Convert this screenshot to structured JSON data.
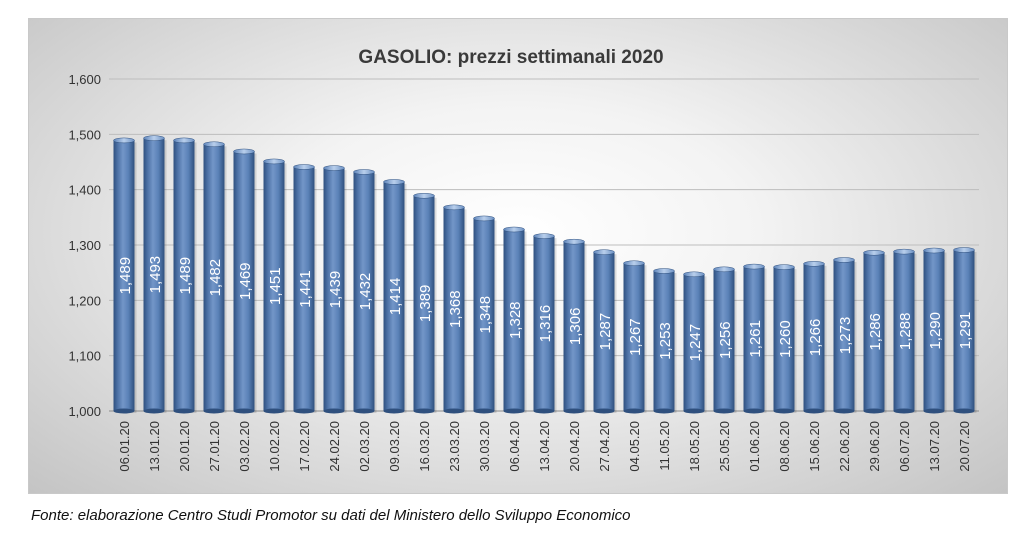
{
  "chart_data": {
    "type": "bar",
    "title": "GASOLIO: prezzi settimanali 2020",
    "xlabel": "",
    "ylabel": "",
    "ylim": [
      1.0,
      1.6
    ],
    "yticks": [
      "1,000",
      "1,100",
      "1,200",
      "1,300",
      "1,400",
      "1,500",
      "1,600"
    ],
    "grid": true,
    "categories": [
      "06.01.20",
      "13.01.20",
      "20.01.20",
      "27.01.20",
      "03.02.20",
      "10.02.20",
      "17.02.20",
      "24.02.20",
      "02.03.20",
      "09.03.20",
      "16.03.20",
      "23.03.20",
      "30.03.20",
      "06.04.20",
      "13.04.20",
      "20.04.20",
      "27.04.20",
      "04.05.20",
      "11.05.20",
      "18.05.20",
      "25.05.20",
      "01.06.20",
      "08.06.20",
      "15.06.20",
      "22.06.20",
      "29.06.20",
      "06.07.20",
      "13.07.20",
      "20.07.20"
    ],
    "values": [
      1.489,
      1.493,
      1.489,
      1.482,
      1.469,
      1.451,
      1.441,
      1.439,
      1.432,
      1.414,
      1.389,
      1.368,
      1.348,
      1.328,
      1.316,
      1.306,
      1.287,
      1.267,
      1.253,
      1.247,
      1.256,
      1.261,
      1.26,
      1.266,
      1.273,
      1.286,
      1.288,
      1.29,
      1.291
    ],
    "value_labels": [
      "1,489",
      "1,493",
      "1,489",
      "1,482",
      "1,469",
      "1,451",
      "1,441",
      "1,439",
      "1,432",
      "1,414",
      "1,389",
      "1,368",
      "1,348",
      "1,328",
      "1,316",
      "1,306",
      "1,287",
      "1,267",
      "1,253",
      "1,247",
      "1,256",
      "1,261",
      "1,260",
      "1,266",
      "1,273",
      "1,286",
      "1,288",
      "1,290",
      "1,291"
    ],
    "bar_color": "#5b82b8",
    "bar_color_dark": "#2f507e",
    "bar_color_light": "#9cb8dd"
  },
  "source_note": "Fonte: elaborazione Centro Studi Promotor su dati del Ministero dello Sviluppo Economico"
}
